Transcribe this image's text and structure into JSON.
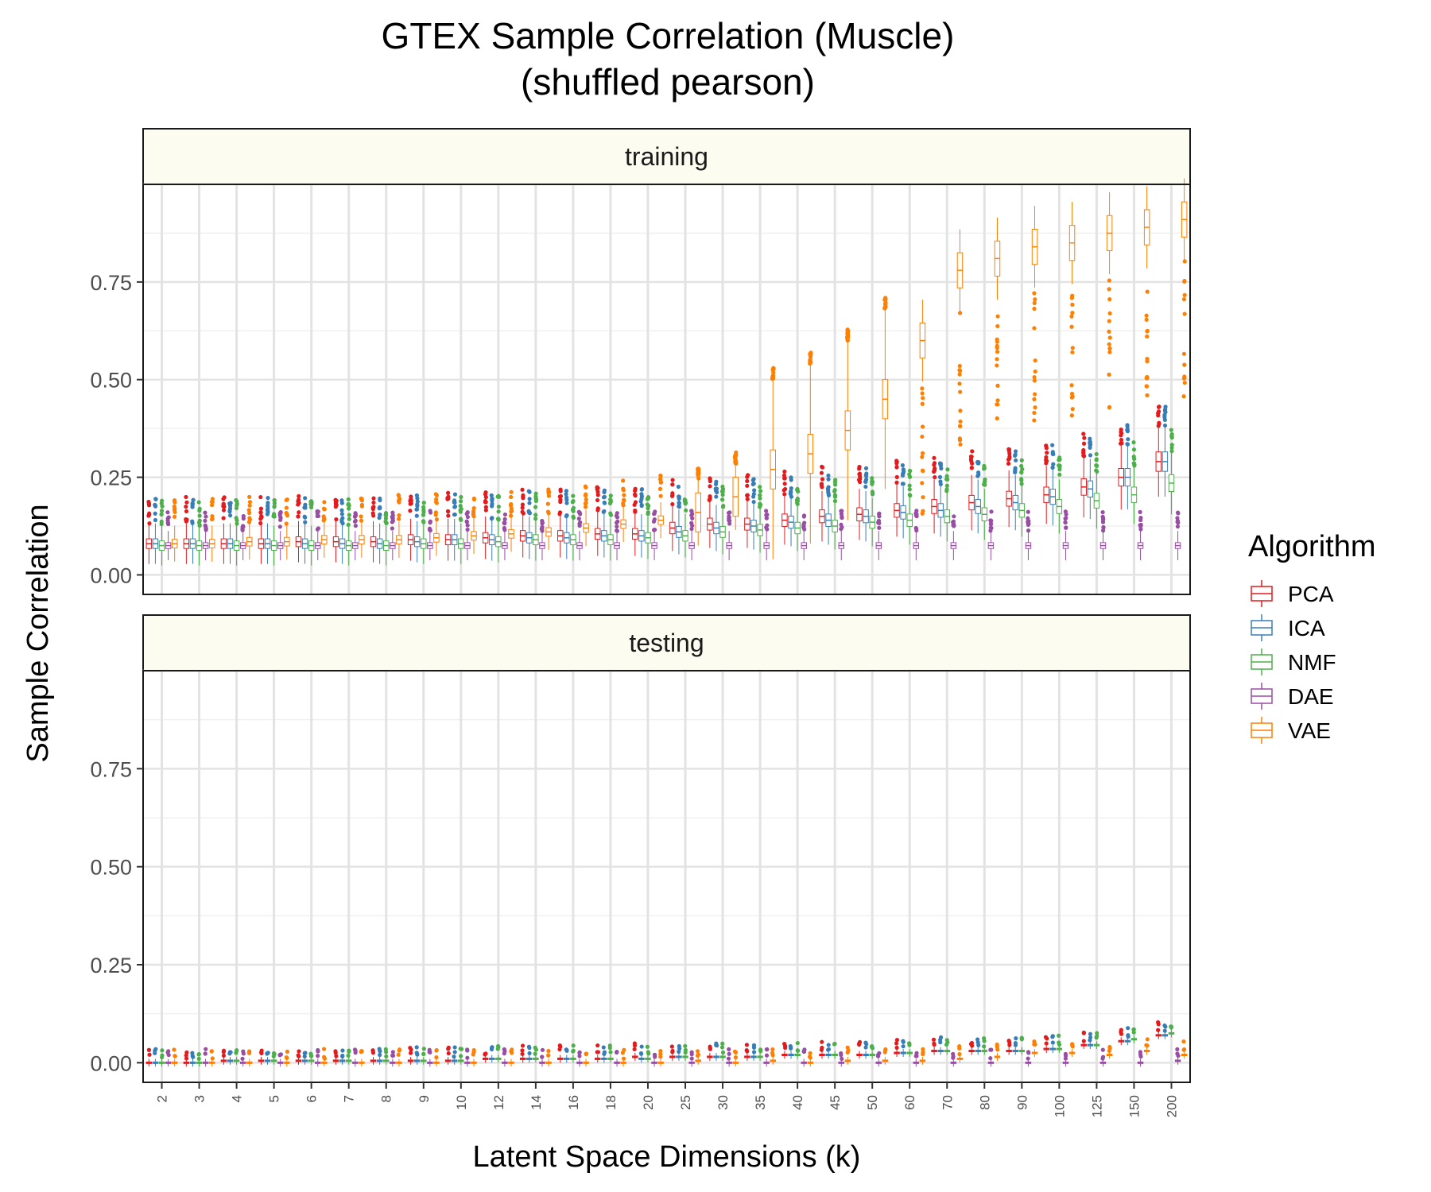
{
  "chart_data": {
    "type": "box",
    "title": "GTEX Sample Correlation (Muscle)",
    "subtitle": "(shuffled pearson)",
    "xlabel": "Latent Space Dimensions (k)",
    "ylabel": "Sample Correlation",
    "ylim": [
      -0.05,
      1.0
    ],
    "yticks": [
      "0.00",
      "0.25",
      "0.50",
      "0.75"
    ],
    "grid": true,
    "legend_title": "Algorithm",
    "legend_position": "right",
    "categories": [
      "2",
      "3",
      "4",
      "5",
      "6",
      "7",
      "8",
      "9",
      "10",
      "12",
      "14",
      "16",
      "18",
      "20",
      "25",
      "30",
      "35",
      "40",
      "45",
      "50",
      "60",
      "70",
      "80",
      "90",
      "100",
      "125",
      "150",
      "200"
    ],
    "series": [
      {
        "name": "PCA",
        "color": "#e41a1c"
      },
      {
        "name": "ICA",
        "color": "#377eb8"
      },
      {
        "name": "NMF",
        "color": "#4daf4a"
      },
      {
        "name": "DAE",
        "color": "#984ea3"
      },
      {
        "name": "VAE",
        "color": "#ff7f00"
      }
    ],
    "panels": [
      {
        "name": "training",
        "medians": {
          "PCA": [
            0.08,
            0.08,
            0.08,
            0.08,
            0.085,
            0.085,
            0.085,
            0.09,
            0.09,
            0.095,
            0.1,
            0.1,
            0.105,
            0.105,
            0.12,
            0.13,
            0.13,
            0.14,
            0.15,
            0.155,
            0.165,
            0.175,
            0.185,
            0.195,
            0.205,
            0.225,
            0.25,
            0.29
          ],
          "ICA": [
            0.08,
            0.08,
            0.08,
            0.08,
            0.08,
            0.08,
            0.08,
            0.085,
            0.09,
            0.09,
            0.095,
            0.095,
            0.1,
            0.1,
            0.11,
            0.12,
            0.125,
            0.135,
            0.14,
            0.15,
            0.16,
            0.165,
            0.175,
            0.185,
            0.2,
            0.22,
            0.25,
            0.29
          ],
          "NMF": [
            0.075,
            0.075,
            0.075,
            0.075,
            0.075,
            0.075,
            0.075,
            0.08,
            0.08,
            0.085,
            0.09,
            0.09,
            0.09,
            0.095,
            0.1,
            0.11,
            0.115,
            0.12,
            0.125,
            0.135,
            0.14,
            0.15,
            0.155,
            0.165,
            0.175,
            0.19,
            0.205,
            0.235
          ],
          "DAE": [
            0.075,
            0.075,
            0.075,
            0.075,
            0.075,
            0.075,
            0.075,
            0.075,
            0.075,
            0.075,
            0.075,
            0.075,
            0.075,
            0.075,
            0.075,
            0.075,
            0.075,
            0.075,
            0.075,
            0.075,
            0.075,
            0.075,
            0.075,
            0.075,
            0.075,
            0.075,
            0.075,
            0.075
          ],
          "VAE": [
            0.08,
            0.08,
            0.085,
            0.085,
            0.09,
            0.09,
            0.09,
            0.095,
            0.1,
            0.105,
            0.11,
            0.12,
            0.13,
            0.14,
            0.16,
            0.2,
            0.27,
            0.31,
            0.37,
            0.45,
            0.6,
            0.78,
            0.81,
            0.84,
            0.85,
            0.875,
            0.89,
            0.91
          ]
        }
      },
      {
        "name": "testing",
        "medians": {
          "PCA": [
            0.0,
            0.0,
            0.005,
            0.005,
            0.005,
            0.005,
            0.005,
            0.005,
            0.005,
            0.01,
            0.01,
            0.01,
            0.01,
            0.015,
            0.015,
            0.015,
            0.015,
            0.02,
            0.02,
            0.02,
            0.025,
            0.03,
            0.03,
            0.03,
            0.035,
            0.045,
            0.055,
            0.07
          ],
          "ICA": [
            0.0,
            0.0,
            0.005,
            0.005,
            0.005,
            0.005,
            0.005,
            0.005,
            0.005,
            0.01,
            0.01,
            0.01,
            0.01,
            0.01,
            0.015,
            0.015,
            0.015,
            0.02,
            0.02,
            0.02,
            0.025,
            0.03,
            0.03,
            0.03,
            0.035,
            0.045,
            0.055,
            0.07
          ],
          "NMF": [
            0.0,
            0.0,
            0.005,
            0.005,
            0.005,
            0.005,
            0.005,
            0.005,
            0.005,
            0.01,
            0.01,
            0.01,
            0.01,
            0.01,
            0.015,
            0.015,
            0.015,
            0.02,
            0.02,
            0.02,
            0.025,
            0.03,
            0.03,
            0.03,
            0.035,
            0.045,
            0.06,
            0.075
          ],
          "DAE": [
            0.0,
            0.0,
            0.0,
            0.0,
            0.0,
            0.0,
            0.0,
            0.0,
            0.0,
            0.0,
            0.0,
            0.0,
            0.0,
            0.0,
            0.0,
            0.0,
            0.0,
            0.0,
            0.0,
            0.0,
            0.0,
            0.0,
            0.0,
            0.0,
            0.0,
            0.0,
            0.0,
            0.005
          ],
          "VAE": [
            0.0,
            0.0,
            0.0,
            0.0,
            0.0,
            0.0,
            0.0,
            0.0,
            0.0,
            0.0,
            0.0,
            0.0,
            0.0,
            0.0,
            0.005,
            0.0,
            0.005,
            0.0,
            0.005,
            0.005,
            0.005,
            0.01,
            0.015,
            0.025,
            0.025,
            0.02,
            0.03,
            0.02
          ]
        }
      }
    ]
  }
}
